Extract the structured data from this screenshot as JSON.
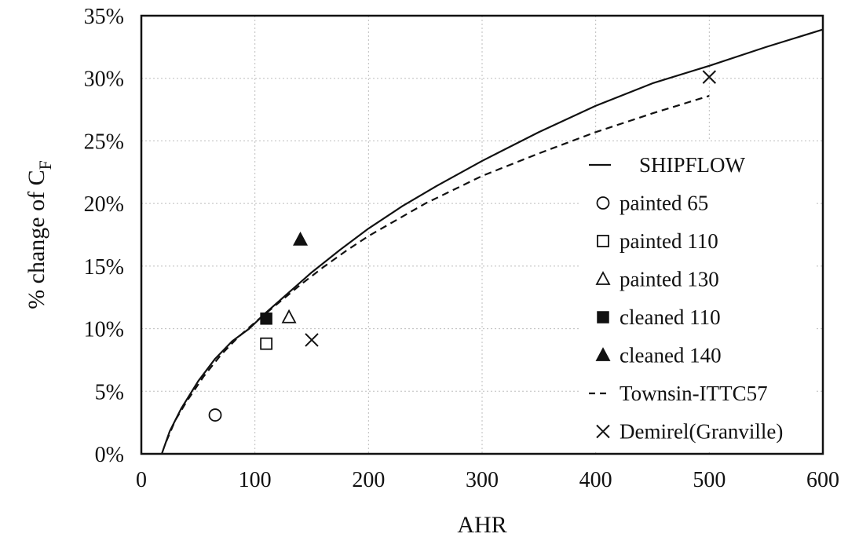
{
  "chart_data": {
    "type": "line",
    "xlabel": "AHR",
    "ylabel": {
      "main": "% change of C",
      "sub": "F"
    },
    "xlim": [
      0,
      600
    ],
    "ylim": [
      0,
      35
    ],
    "xticks": [
      0,
      100,
      200,
      300,
      400,
      500,
      600
    ],
    "yticks": [
      0,
      5,
      10,
      15,
      20,
      25,
      30,
      35
    ],
    "ytick_labels": [
      "0%",
      "5%",
      "10%",
      "15%",
      "20%",
      "25%",
      "30%",
      "35%"
    ],
    "grid": "dotted",
    "legend_position": "right",
    "series": [
      {
        "name": "SHIPFLOW",
        "kind": "line",
        "style": "solid",
        "x": [
          18,
          25,
          35,
          50,
          65,
          80,
          95,
          110,
          130,
          150,
          175,
          200,
          230,
          260,
          300,
          350,
          400,
          450,
          500,
          550,
          600
        ],
        "y": [
          0.0,
          1.8,
          3.6,
          5.8,
          7.6,
          9.0,
          10.0,
          11.3,
          12.9,
          14.5,
          16.3,
          18.0,
          19.8,
          21.4,
          23.4,
          25.7,
          27.8,
          29.6,
          31.0,
          32.5,
          33.9
        ]
      },
      {
        "name": "painted 65",
        "kind": "scatter",
        "marker": "circle-open",
        "x": [
          65
        ],
        "y": [
          3.1
        ]
      },
      {
        "name": "painted 110",
        "kind": "scatter",
        "marker": "square-open",
        "x": [
          110
        ],
        "y": [
          8.8
        ]
      },
      {
        "name": "painted 130",
        "kind": "scatter",
        "marker": "triangle-open",
        "x": [
          130
        ],
        "y": [
          10.9
        ]
      },
      {
        "name": "cleaned 110",
        "kind": "scatter",
        "marker": "square-filled",
        "x": [
          110
        ],
        "y": [
          10.8
        ]
      },
      {
        "name": "cleaned 140",
        "kind": "scatter",
        "marker": "triangle-filled",
        "x": [
          140
        ],
        "y": [
          17.1
        ]
      },
      {
        "name": "Townsin-ITTC57",
        "kind": "line",
        "style": "dashed",
        "x": [
          22,
          30,
          40,
          55,
          70,
          85,
          100,
          120,
          140,
          160,
          180,
          200,
          250,
          300,
          350,
          400,
          450,
          500
        ],
        "y": [
          1.0,
          2.7,
          4.2,
          6.2,
          7.9,
          9.3,
          10.5,
          12.0,
          13.5,
          14.9,
          16.2,
          17.4,
          20.0,
          22.2,
          24.0,
          25.7,
          27.2,
          28.6
        ]
      },
      {
        "name": "Demirel(Granville)",
        "kind": "scatter",
        "marker": "cross",
        "x": [
          150,
          500
        ],
        "y": [
          9.1,
          30.1
        ]
      }
    ]
  }
}
